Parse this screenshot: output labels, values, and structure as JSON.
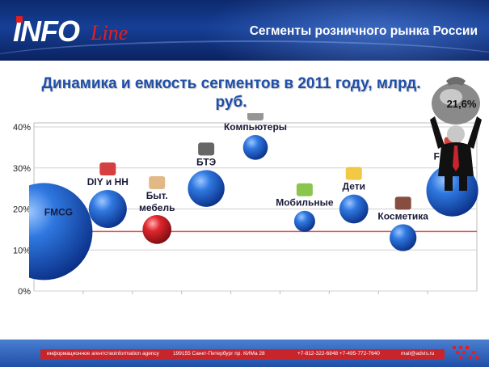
{
  "header": {
    "logo_main": "INFO",
    "logo_script": "Line",
    "title": "Сегменты розничного рынка России"
  },
  "chart_title": "Динамика и емкость сегментов в 2011 году, млрд. руб.",
  "badge": {
    "value": "21,6%"
  },
  "chart_data": {
    "type": "bubble",
    "title": "Динамика и емкость сегментов в 2011 году, млрд. руб.",
    "ylim": [
      0,
      0.4
    ],
    "ytick_labels": [
      "0%",
      "10%",
      "20%",
      "30%",
      "40%"
    ],
    "reference_line": {
      "y": 0.145,
      "color": "#e34a4a"
    },
    "grid": true,
    "points": [
      {
        "label": "FMCG",
        "x": 1,
        "y": 0.145,
        "size": 100,
        "color": "#1a5fc2"
      },
      {
        "label": "DIY и НН",
        "x": 2,
        "y": 0.2,
        "size": 12,
        "color": "#1a5fc2"
      },
      {
        "label": "Быт. мебель",
        "x": 3,
        "y": 0.15,
        "size": 6,
        "color": "#d8202a"
      },
      {
        "label": "БТЭ",
        "x": 4,
        "y": 0.25,
        "size": 11,
        "color": "#1a5fc2"
      },
      {
        "label": "Компьютеры",
        "x": 5,
        "y": 0.35,
        "size": 4,
        "color": "#1a5fc2"
      },
      {
        "label": "Мобильные",
        "x": 6,
        "y": 0.17,
        "size": 2.5,
        "color": "#1a5fc2"
      },
      {
        "label": "Дети",
        "x": 7,
        "y": 0.2,
        "size": 6,
        "color": "#1a5fc2"
      },
      {
        "label": "Косметика",
        "x": 8,
        "y": 0.13,
        "size": 5,
        "color": "#1a5fc2"
      },
      {
        "label": "Fashion",
        "x": 9,
        "y": 0.245,
        "size": 25,
        "color": "#1a5fc2"
      }
    ]
  },
  "footer": {
    "agency_ru": "информационное агентство",
    "agency_en": "information agency",
    "address": "199155 Санкт-Петербург пр. КИМа 28",
    "phones": "+7-812-322-6848  +7-495-772-7640",
    "email": "mail@advis.ru"
  }
}
